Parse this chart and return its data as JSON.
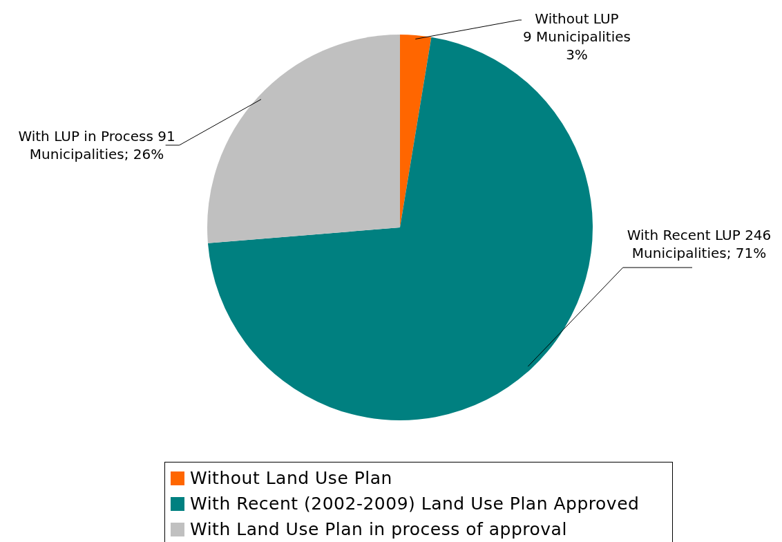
{
  "chart_data": {
    "type": "pie",
    "categories": [
      "Without Land Use Plan",
      "With Recent (2002-2009) Land Use Plan Approved",
      "With Land Use Plan in process of approval"
    ],
    "values": [
      9,
      246,
      91
    ],
    "colors": [
      "#ff6600",
      "#008080",
      "#c0c0c0"
    ],
    "value_labels": [
      "Without LUP\n9 Municipalities\n3%",
      "With Recent LUP 246\nMunicipalities; 71%",
      "With LUP in Process 91\nMunicipalities; 26%"
    ],
    "legend": "bottom"
  }
}
